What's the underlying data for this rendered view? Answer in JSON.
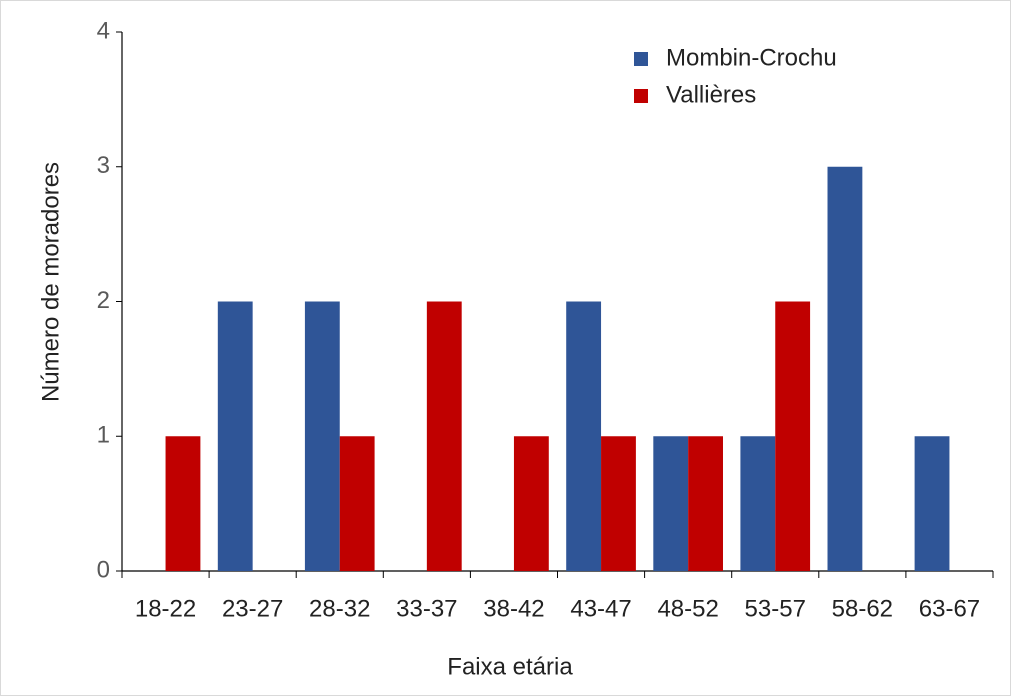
{
  "chart_data": {
    "type": "grouped-bar",
    "x_label": "Faixa etária",
    "y_label": "Número de moradores",
    "categories": [
      "18-22",
      "23-27",
      "28-32",
      "33-37",
      "38-42",
      "43-47",
      "48-52",
      "53-57",
      "58-62",
      "63-67"
    ],
    "series": [
      {
        "name": "Mombin-Crochu",
        "color": "#2f5597",
        "values": [
          0,
          2,
          2,
          0,
          0,
          2,
          1,
          1,
          3,
          1
        ]
      },
      {
        "name": "Vallières",
        "color": "#c00000",
        "values": [
          1,
          0,
          1,
          2,
          1,
          1,
          1,
          2,
          0,
          0
        ]
      }
    ],
    "ylim": [
      0,
      4
    ],
    "yticks": [
      0,
      1,
      2,
      3,
      4
    ],
    "grid": false,
    "legend": "top-right"
  }
}
